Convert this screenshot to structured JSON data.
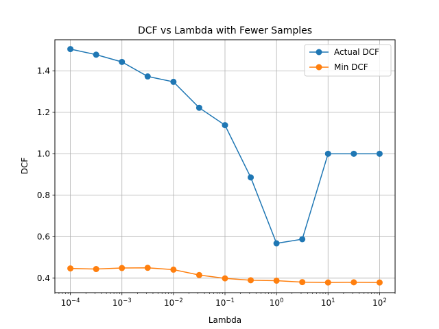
{
  "chart_data": {
    "type": "line",
    "title": "DCF vs Lambda with Fewer Samples",
    "xlabel": "Lambda",
    "ylabel": "DCF",
    "xscale": "log",
    "xlim": [
      5e-05,
      200
    ],
    "ylim": [
      0.33,
      1.55
    ],
    "grid": true,
    "legend_position": "top-right",
    "x": [
      0.0001,
      0.000316,
      0.001,
      0.00316,
      0.01,
      0.0316,
      0.1,
      0.316,
      1,
      3.16,
      10,
      31.6,
      100
    ],
    "series": [
      {
        "name": "Actual DCF",
        "color": "#1f77b4",
        "values": [
          1.505,
          1.478,
          1.443,
          1.373,
          1.347,
          1.222,
          1.138,
          0.886,
          0.568,
          0.588,
          1.0,
          1.0,
          1.0
        ]
      },
      {
        "name": "Min DCF",
        "color": "#ff7f0e",
        "values": [
          0.447,
          0.444,
          0.449,
          0.45,
          0.441,
          0.415,
          0.399,
          0.39,
          0.388,
          0.381,
          0.379,
          0.38,
          0.379
        ]
      }
    ],
    "yticks": [
      {
        "value": 0.4,
        "label": "0.4"
      },
      {
        "value": 0.6,
        "label": "0.6"
      },
      {
        "value": 0.8,
        "label": "0.8"
      },
      {
        "value": 1.0,
        "label": "1.0"
      },
      {
        "value": 1.2,
        "label": "1.2"
      },
      {
        "value": 1.4,
        "label": "1.4"
      }
    ],
    "xticks": [
      {
        "value": 0.0001,
        "base": "10",
        "exp": "−4"
      },
      {
        "value": 0.001,
        "base": "10",
        "exp": "−3"
      },
      {
        "value": 0.01,
        "base": "10",
        "exp": "−2"
      },
      {
        "value": 0.1,
        "base": "10",
        "exp": "−1"
      },
      {
        "value": 1,
        "base": "10",
        "exp": "0"
      },
      {
        "value": 10,
        "base": "10",
        "exp": "1"
      },
      {
        "value": 100,
        "base": "10",
        "exp": "2"
      }
    ]
  }
}
